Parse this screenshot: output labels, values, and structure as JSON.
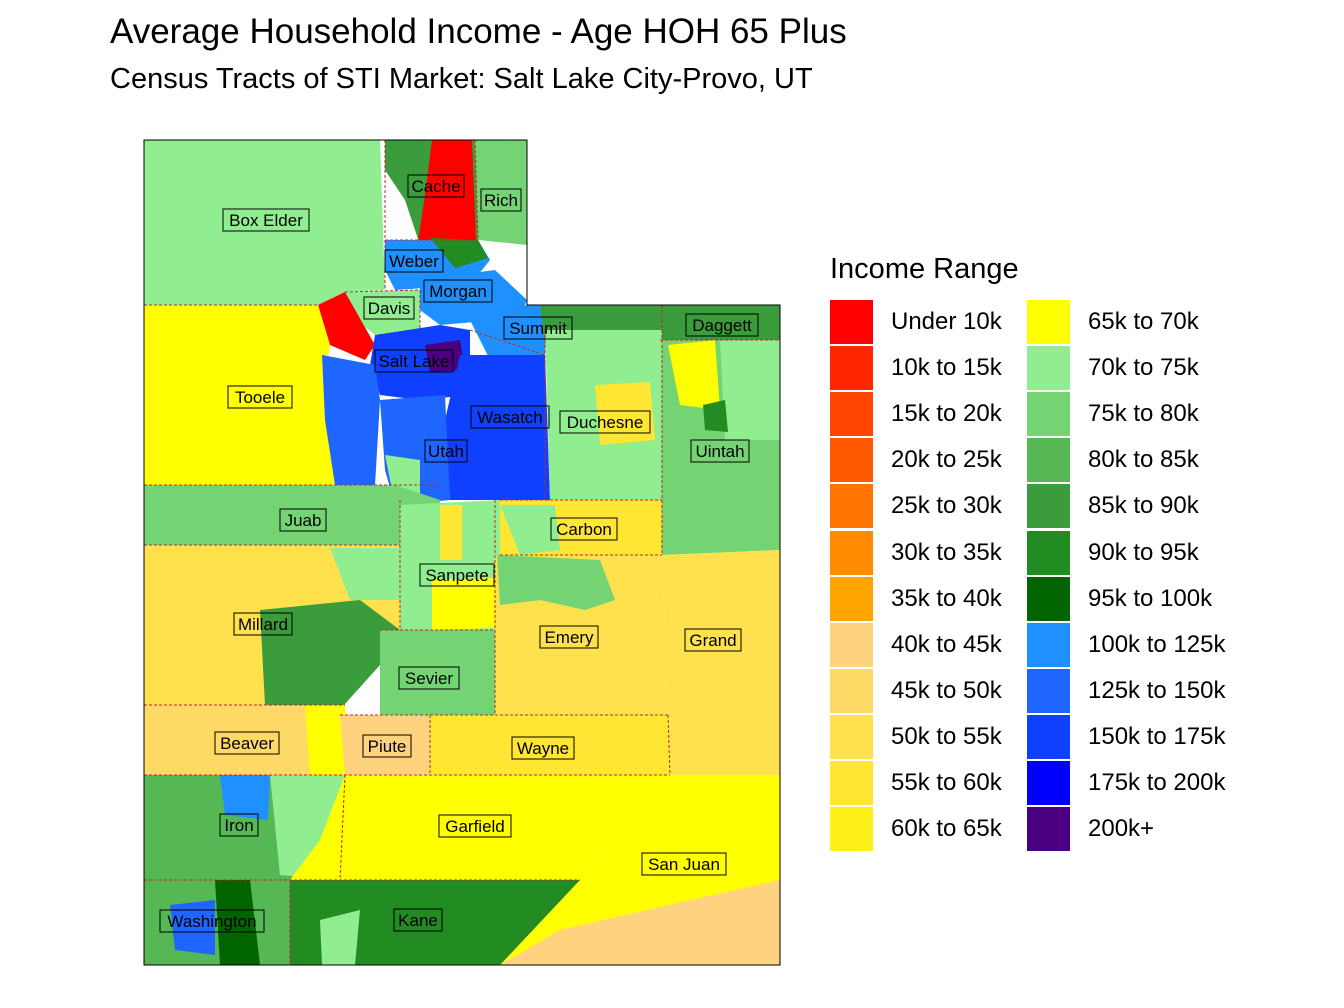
{
  "title": "Average Household Income - Age HOH 65 Plus",
  "subtitle": "Census Tracts of STI Market: Salt Lake City-Provo, UT",
  "legend": {
    "title": "Income Range",
    "items": [
      {
        "label": "Under 10k",
        "color": "#ff0000"
      },
      {
        "label": "10k to 15k",
        "color": "#ff2600"
      },
      {
        "label": "15k to 20k",
        "color": "#ff4500"
      },
      {
        "label": "20k to 25k",
        "color": "#ff5a00"
      },
      {
        "label": "25k to 30k",
        "color": "#ff7300"
      },
      {
        "label": "30k to 35k",
        "color": "#ff8c00"
      },
      {
        "label": "35k to 40k",
        "color": "#ffa500"
      },
      {
        "label": "40k to 45k",
        "color": "#ffd27f"
      },
      {
        "label": "45k to 50k",
        "color": "#ffd966"
      },
      {
        "label": "50k to 55k",
        "color": "#ffe14d"
      },
      {
        "label": "55k to 60k",
        "color": "#ffe633"
      },
      {
        "label": "60k to 65k",
        "color": "#fff01a"
      },
      {
        "label": "65k to 70k",
        "color": "#ffff00"
      },
      {
        "label": "70k to 75k",
        "color": "#90ee90"
      },
      {
        "label": "75k to 80k",
        "color": "#74d474"
      },
      {
        "label": "80k to 85k",
        "color": "#55b855"
      },
      {
        "label": "85k to 90k",
        "color": "#3a9c3a"
      },
      {
        "label": "90k to 95k",
        "color": "#228b22"
      },
      {
        "label": "95k to 100k",
        "color": "#006400"
      },
      {
        "label": "100k to 125k",
        "color": "#1e90ff"
      },
      {
        "label": "125k to 150k",
        "color": "#1e66ff"
      },
      {
        "label": "150k to 175k",
        "color": "#1040ff"
      },
      {
        "label": "175k to 200k",
        "color": "#0000ff"
      },
      {
        "label": "200k+",
        "color": "#4b0082"
      }
    ]
  },
  "counties": [
    "Box Elder",
    "Cache",
    "Rich",
    "Weber",
    "Davis",
    "Morgan",
    "Summit",
    "Daggett",
    "Salt Lake",
    "Tooele",
    "Wasatch",
    "Duchesne",
    "Uintah",
    "Utah",
    "Juab",
    "Carbon",
    "Sanpete",
    "Millard",
    "Emery",
    "Grand",
    "Sevier",
    "Beaver",
    "Piute",
    "Wayne",
    "Iron",
    "Garfield",
    "San Juan",
    "Washington",
    "Kane"
  ]
}
